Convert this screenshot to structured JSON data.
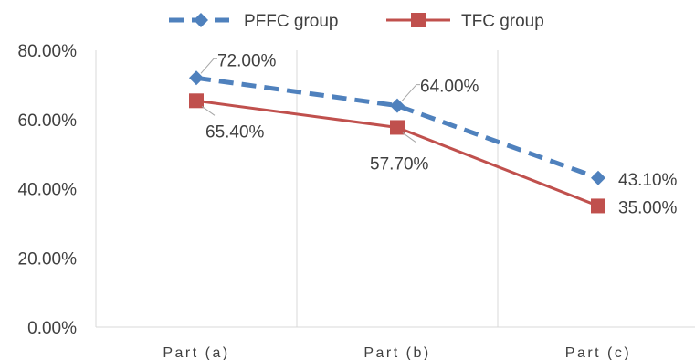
{
  "chart_data": {
    "type": "line",
    "categories": [
      "Part (a)",
      "Part (b)",
      "Part (c)"
    ],
    "ylim": [
      0,
      80
    ],
    "yticks": [
      0,
      20,
      40,
      60,
      80
    ],
    "ytick_labels": [
      "0.00%",
      "20.00%",
      "40.00%",
      "60.00%",
      "80.00%"
    ],
    "grid": "vertical-category-separators",
    "legend": "top",
    "series": [
      {
        "name": "PFFC group",
        "values": [
          72.0,
          64.0,
          43.1
        ],
        "labels": [
          "72.00%",
          "64.00%",
          "43.10%"
        ],
        "color": "#4F81BD",
        "line_style": "dashed",
        "marker": "diamond"
      },
      {
        "name": "TFC group",
        "values": [
          65.4,
          57.7,
          35.0
        ],
        "labels": [
          "65.40%",
          "57.70%",
          "35.00%"
        ],
        "color": "#C0504D",
        "line_style": "solid",
        "marker": "square"
      }
    ]
  }
}
